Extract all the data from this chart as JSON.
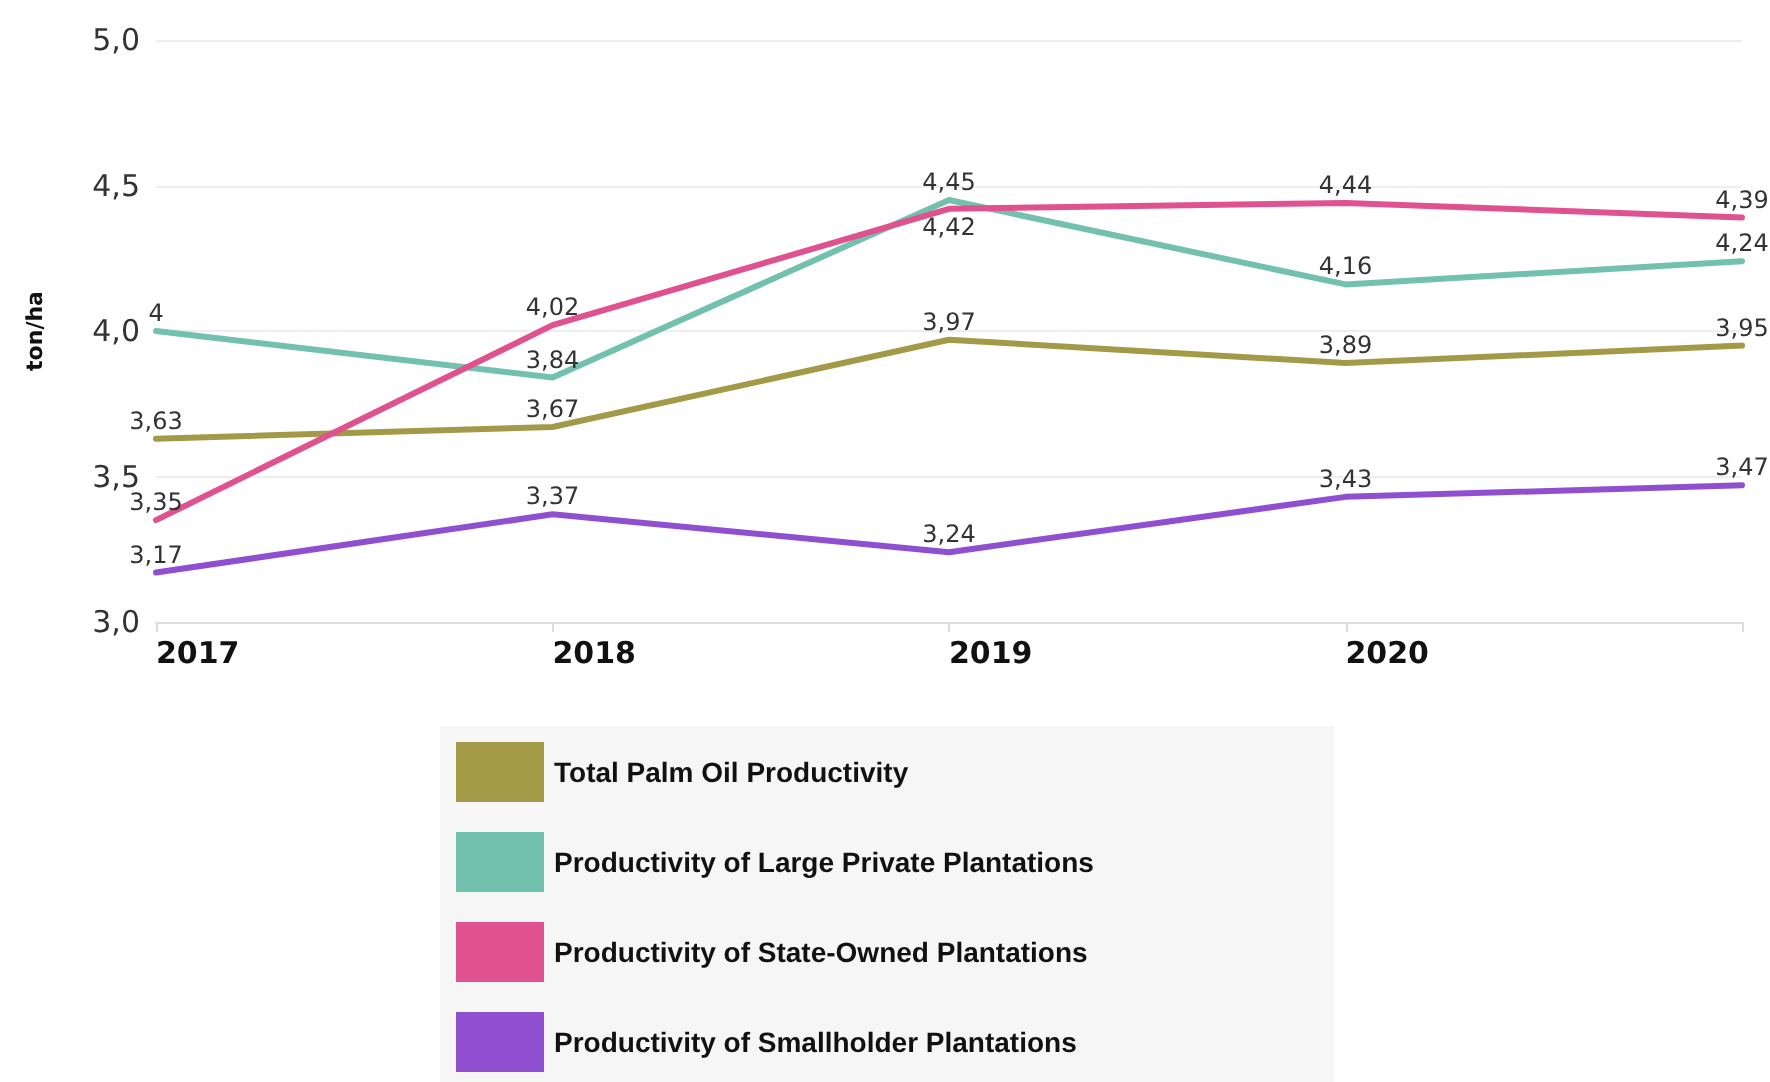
{
  "chart_data": {
    "type": "line",
    "ylabel": "ton/ha",
    "categories": [
      "2017",
      "2018",
      "2019",
      "2020",
      null
    ],
    "ylim": [
      3,
      5
    ],
    "yticks": [
      {
        "value": 3,
        "label": "3,0"
      },
      {
        "value": 3.5,
        "label": "3,5"
      },
      {
        "value": 4,
        "label": "4,0"
      },
      {
        "value": 4.5,
        "label": "4,5"
      },
      {
        "value": 5,
        "label": "5,0"
      }
    ],
    "grid": "y",
    "legend": "bottom",
    "marker": "none",
    "line_style": "solid",
    "series": [
      {
        "name": "Total Palm Oil Productivity",
        "color": "#a39a48",
        "values": [
          3.63,
          3.67,
          3.97,
          3.89,
          3.95
        ],
        "value_labels": [
          "3,63",
          "3,67",
          "3,97",
          "3,89",
          "3,95"
        ]
      },
      {
        "name": "Productivity of Large Private Plantations",
        "color": "#72c0ae",
        "values": [
          4,
          3.84,
          4.45,
          4.16,
          4.24
        ],
        "value_labels": [
          "4",
          "3,84",
          "4,45",
          "4,16",
          "4,24"
        ]
      },
      {
        "name": "Productivity of State-Owned Plantations",
        "color": "#e0528f",
        "values": [
          3.35,
          4.02,
          4.42,
          4.44,
          4.39
        ],
        "value_labels": [
          "3,35",
          "4,02",
          "4,42",
          "4,44",
          "4,39"
        ]
      },
      {
        "name": "Productivity of Smallholder Plantations",
        "color": "#8f4fd0",
        "values": [
          3.17,
          3.37,
          3.24,
          3.43,
          3.47
        ],
        "value_labels": [
          "3,17",
          "3,37",
          "3,24",
          "3,43",
          "3,47"
        ]
      }
    ]
  }
}
